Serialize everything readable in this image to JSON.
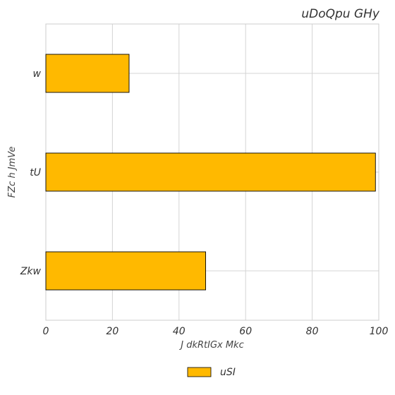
{
  "chart_data": {
    "type": "bar",
    "orientation": "horizontal",
    "title": "uDoQpu  GHy",
    "xlabel": "J dkRtIGx Mkc",
    "ylabel": "FZc h  JmVe",
    "categories": [
      "w",
      "tU",
      "Zkw"
    ],
    "series": [
      {
        "name": "uSI",
        "values": [
          25,
          99,
          48
        ],
        "color": "#FFB900"
      }
    ],
    "xlim": [
      0,
      100
    ],
    "xticks": [
      0,
      20,
      40,
      60,
      80,
      100
    ],
    "grid": true,
    "legend_position": "bottom-center"
  }
}
